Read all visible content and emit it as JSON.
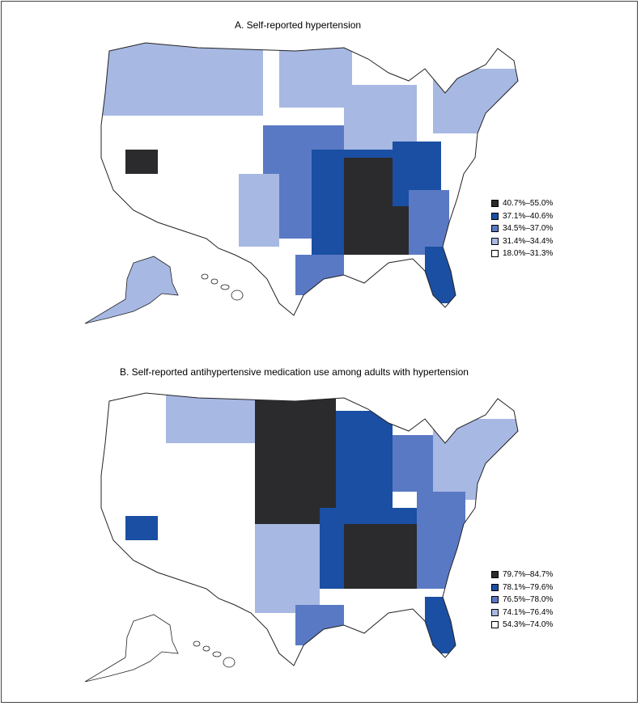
{
  "panels": [
    {
      "title": "A. Self-reported hypertension",
      "legend": [
        {
          "label": "40.7%–55.0%",
          "color": "#2b2b2d"
        },
        {
          "label": "37.1%–40.6%",
          "color": "#1a4fa3"
        },
        {
          "label": "34.5%–37.0%",
          "color": "#5a79c4"
        },
        {
          "label": "31.4%–34.4%",
          "color": "#a7b8e3"
        },
        {
          "label": "18.0%–31.3%",
          "color": "#ffffff"
        }
      ]
    },
    {
      "title": "B. Self-reported antihypertensive medication use among adults with hypertension",
      "legend": [
        {
          "label": "79.7%–84.7%",
          "color": "#2b2b2d"
        },
        {
          "label": "78.1%–79.6%",
          "color": "#1a4fa3"
        },
        {
          "label": "76.5%–78.0%",
          "color": "#5a79c4"
        },
        {
          "label": "74.1%–76.4%",
          "color": "#a7b8e3"
        },
        {
          "label": "54.3%–74.0%",
          "color": "#ffffff"
        }
      ]
    }
  ]
}
